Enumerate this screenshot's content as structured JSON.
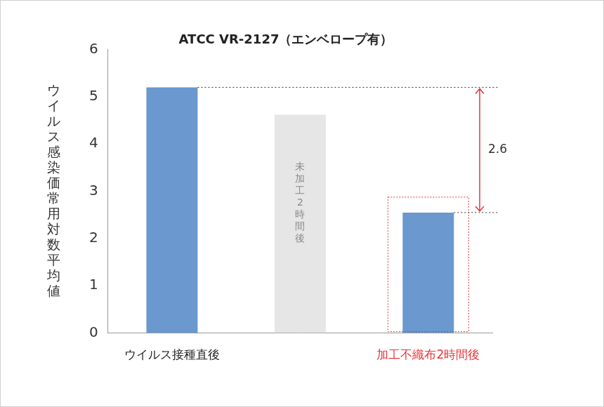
{
  "chart_data": {
    "type": "bar",
    "title": "ATCC VR-2127（エンベロープ有）",
    "y_label": "ウイルス感染価常用対数平均値",
    "categories": [
      "ウイルス接種直後",
      "未加工2時間後",
      "加工不織布2時間後"
    ],
    "values": [
      5.2,
      4.62,
      2.55
    ],
    "colors": [
      "#6a98cf",
      "#e6e6e6",
      "#6a98cf"
    ],
    "ylim": [
      0,
      6
    ],
    "yticks": [
      0,
      1,
      2,
      3,
      4,
      5,
      6
    ],
    "grid": false,
    "annotation": "2.6"
  }
}
